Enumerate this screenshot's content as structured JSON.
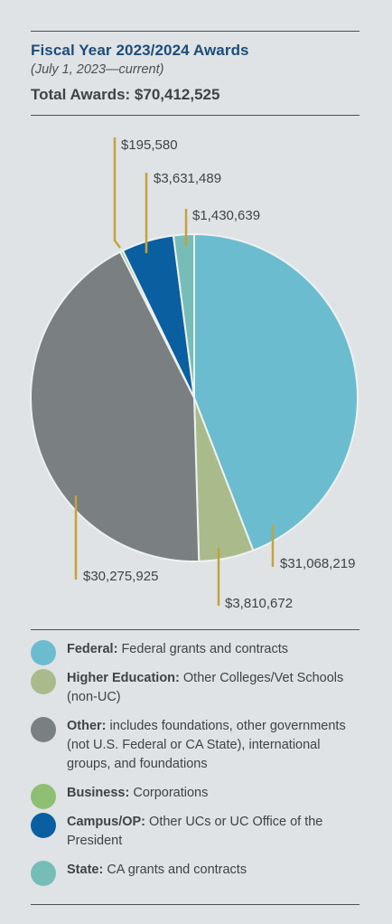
{
  "header": {
    "title": "Fiscal Year 2023/2024 Awards",
    "subtitle": "(July 1, 2023—current)",
    "total": "Total Awards: $70,412,525"
  },
  "chart_data": {
    "type": "pie",
    "title": "Fiscal Year 2023/2024 Awards",
    "subtitle": "(July 1, 2023—current)",
    "total": 70412525,
    "slices": [
      {
        "name": "Federal",
        "value": 31068219,
        "label": "$31,068,219",
        "color": "#6bbccf"
      },
      {
        "name": "Higher Education",
        "value": 3810672,
        "label": "$3,810,672",
        "color": "#a9bb8a"
      },
      {
        "name": "Other",
        "value": 30275925,
        "label": "$30,275,925",
        "color": "#7a7f82"
      },
      {
        "name": "Business",
        "value": 195580,
        "label": "$195,580",
        "color": "#8fbf72"
      },
      {
        "name": "Campus/OP",
        "value": 3631489,
        "label": "$3,631,489",
        "color": "#0a5fa0"
      },
      {
        "name": "State",
        "value": 1430639,
        "label": "$1,430,639",
        "color": "#76bdb7"
      }
    ],
    "leader_color": "#c4a23c"
  },
  "legend": [
    {
      "key": "Federal:",
      "text": "Federal grants and contracts",
      "color": "#6bbccf"
    },
    {
      "key": "Higher Education:",
      "text": "Other Colleges/Vet Schools (non-UC)",
      "color": "#a9bb8a"
    },
    {
      "key": "Other:",
      "text": "includes foundations, other governments (not U.S. Federal or CA State), international groups, and foundations",
      "color": "#7a7f82"
    },
    {
      "key": "Business:",
      "text": "Corporations",
      "color": "#8fbf72"
    },
    {
      "key": "Campus/OP:",
      "text": "Other UCs or UC Office of the President",
      "color": "#0a5fa0"
    },
    {
      "key": "State:",
      "text": "CA grants and contracts",
      "color": "#76bdb7"
    }
  ]
}
